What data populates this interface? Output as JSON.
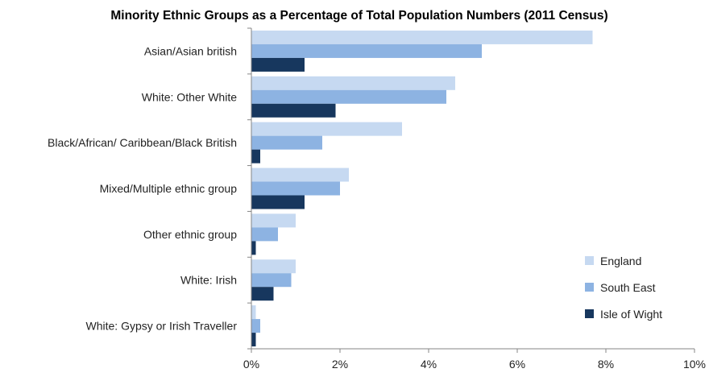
{
  "chart_data": {
    "type": "bar",
    "orientation": "horizontal",
    "title": "Minority Ethnic Groups as a Percentage of Total Population Numbers (2011 Census)",
    "categories": [
      "Asian/Asian british",
      "White: Other White",
      "Black/African/ Caribbean/Black British",
      "Mixed/Multiple ethnic group",
      "Other ethnic group",
      "White: Irish",
      "White: Gypsy or Irish Traveller"
    ],
    "series": [
      {
        "name": "England",
        "color": "#c6d9f1",
        "values": [
          7.7,
          4.6,
          3.4,
          2.2,
          1.0,
          1.0,
          0.1
        ]
      },
      {
        "name": "South East",
        "color": "#8db3e2",
        "values": [
          5.2,
          4.4,
          1.6,
          2.0,
          0.6,
          0.9,
          0.2
        ]
      },
      {
        "name": "Isle of Wight",
        "color": "#17375e",
        "values": [
          1.2,
          1.9,
          0.2,
          1.2,
          0.1,
          0.5,
          0.1
        ]
      }
    ],
    "xlim": [
      0,
      10
    ],
    "xticks": [
      0,
      2,
      4,
      6,
      8,
      10
    ],
    "tick_format": "percent",
    "grid": false,
    "legend_position": "bottom-right"
  }
}
